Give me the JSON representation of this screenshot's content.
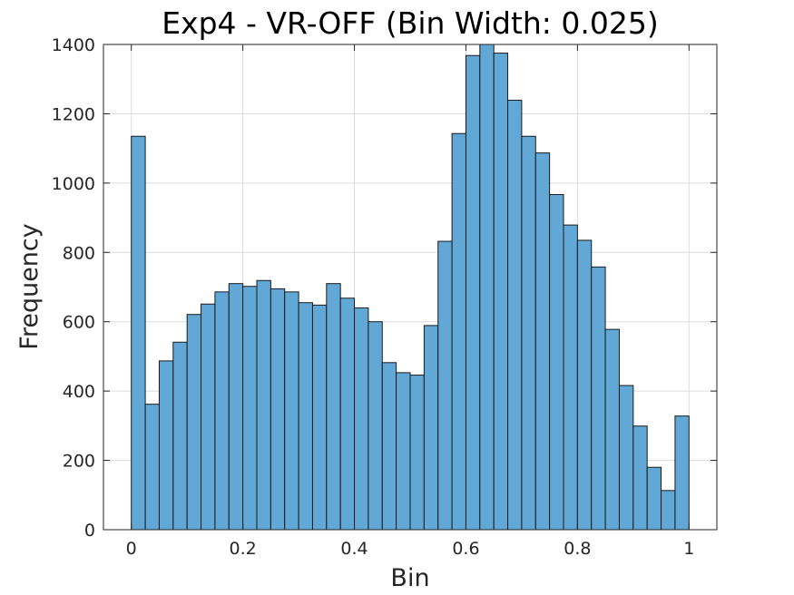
{
  "chart_data": {
    "type": "bar",
    "title": "Exp4 - VR-OFF (Bin Width: 0.025)",
    "xlabel": "Bin",
    "ylabel": "Frequency",
    "xlim": [
      -0.05,
      1.05
    ],
    "ylim": [
      0,
      1400
    ],
    "bin_width": 0.025,
    "xticks": [
      0,
      0.2,
      0.4,
      0.6,
      0.8,
      1
    ],
    "xtick_labels": [
      "0",
      "0.2",
      "0.4",
      "0.6",
      "0.8",
      "1"
    ],
    "yticks": [
      0,
      200,
      400,
      600,
      800,
      1000,
      1200,
      1400
    ],
    "ytick_labels": [
      "0",
      "200",
      "400",
      "600",
      "800",
      "1000",
      "1200",
      "1400"
    ],
    "grid": true,
    "bar_color": "#62a8d6",
    "bar_edge_color": "#1a1a1a",
    "bin_edges": [
      0,
      0.025,
      0.05,
      0.075,
      0.1,
      0.125,
      0.15,
      0.175,
      0.2,
      0.225,
      0.25,
      0.275,
      0.3,
      0.325,
      0.35,
      0.375,
      0.4,
      0.425,
      0.45,
      0.475,
      0.5,
      0.525,
      0.55,
      0.575,
      0.6,
      0.625,
      0.65,
      0.675,
      0.7,
      0.725,
      0.75,
      0.775,
      0.8,
      0.825,
      0.85,
      0.875,
      0.9,
      0.925,
      0.95,
      0.975,
      1.0
    ],
    "values": [
      1135,
      362,
      487,
      541,
      621,
      651,
      686,
      710,
      702,
      719,
      695,
      686,
      655,
      648,
      710,
      668,
      640,
      600,
      482,
      453,
      446,
      589,
      832,
      1143,
      1368,
      1400,
      1375,
      1239,
      1135,
      1087,
      967,
      879,
      835,
      758,
      578,
      416,
      299,
      180,
      113,
      328
    ]
  }
}
